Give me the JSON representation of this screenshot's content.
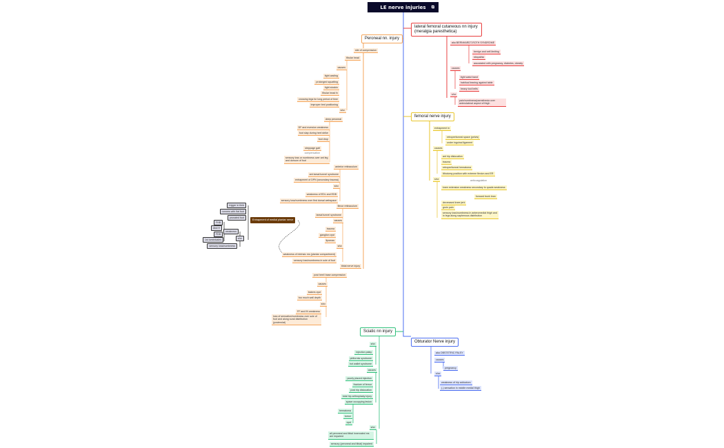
{
  "title": {
    "label": "LE nerve injuries",
    "icon": "mindmap-icon"
  },
  "colors": {
    "peroneal": "#f5a55a",
    "lateral_femoral": "#e83c3c",
    "femoral": "#e8c52a",
    "sciatic": "#2ebf7a",
    "obturator": "#4a6cf0",
    "plantar": "#6b3b0a",
    "title_bg": "#0a0a2a"
  },
  "peroneal": {
    "main": "Peroneal nn. injury",
    "items": [
      "site of compression",
      "fibular head",
      "causes",
      "tight casting",
      "prolonged squatting",
      "tight stockin",
      "fibular head fx",
      "crossing legs for long period of time",
      "improper bed positioning",
      "s/sx",
      "deep peroneal",
      "DF and eversion weakness",
      "foot slap during heel strike",
      "foot drop",
      "steppage gait",
      "compensation",
      "sensory loss or numbness over ant leg and dorsum of foot",
      "anterior retinaculum",
      "ant tarsal tunnel syndrome",
      "entrapment of DPN (secondary trauma)",
      "s/sx",
      "weakness of EDL and EDB",
      "sensory loss/numbness over first dorsal webspace",
      "flexor retinaculum",
      "tarsal tunnel syndrome",
      "causes",
      "trauma",
      "ganglion cyst",
      "lipomas",
      "s/sx",
      "weakness of intrinsic ms (plantar compartment)",
      "sensory loss/numbness in sole of foot",
      "tibial nerve injury",
      "post heel/ base compression",
      "causes",
      "bakers cyst",
      "too much wall depth",
      "s/sx",
      "FF and IN weakness",
      "loss of sensation/numbness over sole of foot and along sural distribution (posterolat)"
    ]
  },
  "plantar": {
    "main": "Entrapment of medial plantar nerve",
    "items": [
      "trigger in field",
      "runners with flat foot",
      "pronated foot",
      "weakness",
      "FHB",
      "Abd H",
      "FDB",
      "1st lumbricales",
      "s/sx",
      "sensory loss/numbness"
    ]
  },
  "lateral_femoral": {
    "main": "lateral femoral cutaneous nn injury (meralgia paresthetica)",
    "items": [
      "aka BERNHARDT-ROTH SYNDROME",
      "benign and self-limiting",
      "idiopathic",
      "associated with pregnancy, diabetes, obesity",
      "causes",
      "tight waist band",
      "habitual leaning against table",
      "heavy tool belts",
      "s/sx",
      "pain/numbness/paresthesia over anterolateral aspect of thigh"
    ]
  },
  "femoral": {
    "main": "femoral nerve injury",
    "items": [
      "entrapment in",
      "retroperitoneal space (pelvis)",
      "under inguinal ligament",
      "causes",
      "ant hip dislocation",
      "trauma",
      "retroperitoneal hematoma",
      "lithotomy position with extreme flexion and ER",
      "s/sx",
      "anticoagulation",
      "knee extension weakness secondary to quads weakness",
      "forward trunk lean",
      "decreased knee jerk",
      "groin pain",
      "sensory loss/numbness in anteromedial thigh and in legs along saphenous distribution"
    ]
  },
  "sciatic": {
    "main": "Sciatic nn injury",
    "items": [
      "s/sx",
      "injection palsy",
      "piriformis syndrome",
      "hot wallet syndrome",
      "causes",
      "poorly placed injection",
      "fracture of femur",
      "post hip dislocation",
      "total hip arthroplasty injury",
      "space occupying lesion",
      "hematoma",
      "tumor",
      "cyst",
      "s/sx",
      "all peroneal and tibial innervated ms are impaired",
      "sensory (peroneal and tibial) impaired"
    ]
  },
  "obturator": {
    "main": "Obturator Nerve injury",
    "items": [
      "aka OBSTETRIC PALSY",
      "causes",
      "pregnancy",
      "s/sx",
      "weakness of hip adductors",
      "(-) sensation in middle medial thigh"
    ]
  }
}
